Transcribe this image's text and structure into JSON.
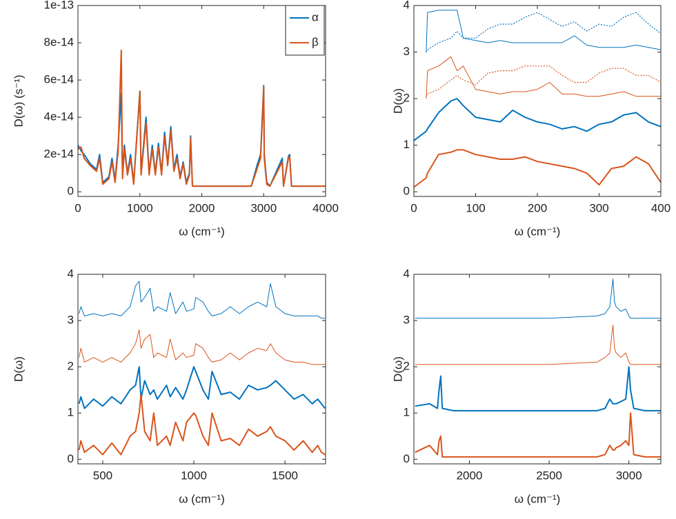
{
  "chart_data": [
    {
      "type": "line",
      "xlabel": "ω (cm⁻¹)",
      "ylabel": "D(ω) (s⁻¹)",
      "legend": "upper right",
      "xlim": [
        0,
        4000
      ],
      "xticks": [
        0,
        1000,
        2000,
        3000,
        4000
      ],
      "ylim": [
        -2.5e-15,
        1e-13
      ],
      "yticks": [
        0,
        {
          "value": 2e-14,
          "label": "2e-14"
        },
        {
          "value": 4e-14,
          "label": "4e-14"
        },
        {
          "value": 6e-14,
          "label": "6e-14"
        },
        {
          "value": 8e-14,
          "label": "8e-14"
        },
        {
          "value": 1e-13,
          "label": "1e-13"
        }
      ],
      "x": [
        0,
        50,
        100,
        200,
        300,
        350,
        400,
        500,
        550,
        600,
        650,
        700,
        720,
        750,
        800,
        850,
        900,
        1000,
        1020,
        1100,
        1150,
        1200,
        1250,
        1300,
        1350,
        1400,
        1450,
        1500,
        1550,
        1600,
        1650,
        1700,
        1750,
        1800,
        1820,
        1850,
        2000,
        2500,
        2800,
        2900,
        2950,
        3000,
        3010,
        3050,
        3100,
        3300,
        3320,
        3400,
        3420,
        3450,
        4000
      ],
      "series": [
        {
          "name": "α",
          "color": "#0072bd",
          "style": "thick",
          "values": [
            2.5e-14,
            2.2e-14,
            2e-14,
            1.5e-14,
            1.2e-14,
            2e-14,
            5e-15,
            8e-15,
            1.8e-14,
            6e-15,
            2.5e-14,
            5.3e-14,
            8e-15,
            2.5e-14,
            1e-14,
            2e-14,
            5e-15,
            5.4e-14,
            1e-14,
            4e-14,
            1e-14,
            2.5e-14,
            1e-14,
            2.6e-14,
            1e-14,
            3.2e-14,
            1.5e-14,
            3.5e-14,
            1.2e-14,
            2e-14,
            8e-15,
            1.6e-14,
            5e-15,
            1e-14,
            3e-14,
            3e-15,
            3e-15,
            3e-15,
            3e-15,
            1.5e-14,
            2e-14,
            5.7e-14,
            2e-14,
            5e-15,
            3e-15,
            1.8e-14,
            3e-15,
            1.9e-14,
            2e-14,
            3e-15,
            3e-15
          ]
        },
        {
          "name": "β",
          "color": "#d95319",
          "style": "thick",
          "values": [
            2.3e-14,
            2.4e-14,
            1.8e-14,
            1.4e-14,
            1.1e-14,
            1.8e-14,
            4e-15,
            7e-15,
            1.6e-14,
            5e-15,
            2.2e-14,
            7.6e-14,
            7e-15,
            2.3e-14,
            9e-15,
            1.8e-14,
            4e-15,
            5.4e-14,
            9e-15,
            3.7e-14,
            9e-15,
            2.3e-14,
            9e-15,
            2.4e-14,
            9e-15,
            3e-14,
            1.4e-14,
            3.3e-14,
            1.1e-14,
            1.8e-14,
            7e-15,
            1.5e-14,
            4e-15,
            9e-15,
            2.9e-14,
            3e-15,
            3e-15,
            3e-15,
            3e-15,
            1.3e-14,
            1.8e-14,
            5.6e-14,
            1.8e-14,
            4e-15,
            3e-15,
            1.6e-14,
            3e-15,
            1.8e-14,
            1.9e-14,
            3e-15,
            3e-15
          ]
        }
      ]
    },
    {
      "type": "line",
      "xlabel": "ω (cm⁻¹)",
      "ylabel": "D(ω)",
      "xlim": [
        0,
        400
      ],
      "xticks": [
        0,
        100,
        200,
        300,
        400
      ],
      "ylim": [
        -0.1,
        4
      ],
      "yticks": [
        0,
        1,
        2,
        3,
        4
      ],
      "x": [
        0,
        20,
        22,
        40,
        60,
        70,
        80,
        100,
        120,
        140,
        160,
        180,
        200,
        220,
        240,
        260,
        280,
        300,
        320,
        340,
        360,
        380,
        400
      ],
      "series": [
        {
          "color": "#0072bd",
          "style": "dotted",
          "values": [
            null,
            3.0,
            3.05,
            3.2,
            3.3,
            3.45,
            3.3,
            3.3,
            3.5,
            3.6,
            3.6,
            3.75,
            3.85,
            3.7,
            3.55,
            3.65,
            3.45,
            3.6,
            3.55,
            3.75,
            3.85,
            3.6,
            3.4
          ]
        },
        {
          "color": "#0072bd",
          "style": "thin",
          "values": [
            null,
            3.0,
            3.85,
            3.9,
            3.9,
            3.9,
            3.3,
            3.25,
            3.2,
            3.25,
            3.2,
            3.2,
            3.2,
            3.2,
            3.2,
            3.35,
            3.15,
            3.1,
            3.1,
            3.1,
            3.15,
            3.1,
            3.05
          ]
        },
        {
          "color": "#0072bd",
          "style": "thick",
          "values": [
            1.1,
            1.3,
            1.35,
            1.7,
            1.95,
            2.0,
            1.85,
            1.6,
            1.55,
            1.5,
            1.75,
            1.6,
            1.5,
            1.45,
            1.35,
            1.4,
            1.3,
            1.45,
            1.5,
            1.65,
            1.7,
            1.5,
            1.4
          ]
        },
        {
          "color": "#d95319",
          "style": "dotted",
          "values": [
            null,
            2.05,
            2.1,
            2.2,
            2.4,
            2.5,
            2.4,
            2.3,
            2.55,
            2.6,
            2.6,
            2.7,
            2.7,
            2.7,
            2.5,
            2.35,
            2.35,
            2.55,
            2.65,
            2.65,
            2.5,
            2.5,
            2.35
          ]
        },
        {
          "color": "#d95319",
          "style": "thin",
          "values": [
            null,
            2.0,
            2.6,
            2.7,
            2.9,
            2.6,
            2.7,
            2.2,
            2.15,
            2.1,
            2.15,
            2.15,
            2.2,
            2.35,
            2.1,
            2.1,
            2.05,
            2.05,
            2.1,
            2.15,
            2.05,
            2.05,
            2.05
          ]
        },
        {
          "color": "#d95319",
          "style": "thick",
          "values": [
            0.1,
            0.3,
            0.4,
            0.8,
            0.85,
            0.9,
            0.9,
            0.8,
            0.75,
            0.7,
            0.7,
            0.75,
            0.65,
            0.6,
            0.55,
            0.5,
            0.4,
            0.15,
            0.5,
            0.55,
            0.75,
            0.6,
            0.2
          ]
        }
      ]
    },
    {
      "type": "line",
      "xlabel": "ω (cm⁻¹)",
      "ylabel": "D(ω)",
      "xlim": [
        364,
        1723
      ],
      "xticks": [
        500,
        1000,
        1500
      ],
      "ylim": [
        -0.1,
        4
      ],
      "yticks": [
        0,
        1,
        2,
        3,
        4
      ],
      "x": [
        370,
        380,
        400,
        450,
        500,
        550,
        600,
        650,
        680,
        700,
        710,
        730,
        760,
        780,
        800,
        850,
        870,
        900,
        940,
        960,
        1000,
        1010,
        1050,
        1080,
        1100,
        1150,
        1200,
        1250,
        1300,
        1350,
        1400,
        1420,
        1450,
        1500,
        1550,
        1600,
        1650,
        1680,
        1700,
        1720
      ],
      "series": [
        {
          "color": "#0072bd",
          "style": "thin",
          "values": [
            3.15,
            3.3,
            3.1,
            3.15,
            3.1,
            3.15,
            3.1,
            3.3,
            3.75,
            3.85,
            3.4,
            3.5,
            3.7,
            3.2,
            3.3,
            3.2,
            3.6,
            3.15,
            3.4,
            3.2,
            3.25,
            3.5,
            3.4,
            3.2,
            3.1,
            3.15,
            3.3,
            3.15,
            3.3,
            3.4,
            3.3,
            3.8,
            3.3,
            3.15,
            3.1,
            3.1,
            3.1,
            3.1,
            3.05,
            3.05
          ]
        },
        {
          "color": "#d95319",
          "style": "thin",
          "values": [
            2.2,
            2.4,
            2.1,
            2.2,
            2.1,
            2.2,
            2.1,
            2.3,
            2.5,
            2.8,
            2.4,
            2.6,
            2.7,
            2.2,
            2.3,
            2.2,
            2.6,
            2.15,
            2.3,
            2.2,
            2.25,
            2.5,
            2.4,
            2.2,
            2.1,
            2.15,
            2.3,
            2.15,
            2.3,
            2.4,
            2.35,
            2.5,
            2.3,
            2.15,
            2.1,
            2.1,
            2.05,
            2.05,
            2.05,
            2.05
          ]
        },
        {
          "color": "#0072bd",
          "style": "thick",
          "values": [
            1.2,
            1.35,
            1.1,
            1.3,
            1.15,
            1.35,
            1.2,
            1.5,
            1.6,
            2.0,
            1.3,
            1.7,
            1.4,
            1.5,
            1.3,
            1.6,
            1.35,
            1.55,
            1.3,
            1.5,
            2.0,
            1.9,
            1.5,
            1.3,
            1.9,
            1.4,
            1.45,
            1.3,
            1.6,
            1.5,
            1.55,
            1.6,
            1.7,
            1.5,
            1.3,
            1.4,
            1.2,
            1.3,
            1.2,
            1.1
          ]
        },
        {
          "color": "#d95319",
          "style": "thick",
          "values": [
            0.2,
            0.4,
            0.15,
            0.3,
            0.1,
            0.35,
            0.1,
            0.5,
            0.6,
            1.0,
            1.4,
            0.6,
            0.4,
            1.0,
            0.3,
            0.5,
            0.3,
            0.8,
            0.4,
            0.8,
            1.0,
            0.95,
            0.5,
            0.3,
            1.0,
            0.4,
            0.45,
            0.3,
            0.65,
            0.5,
            0.6,
            0.7,
            0.5,
            0.4,
            0.2,
            0.4,
            0.15,
            0.3,
            0.15,
            0.1
          ]
        }
      ]
    },
    {
      "type": "line",
      "xlabel": "ω (cm⁻¹)",
      "ylabel": "D(ω)",
      "xlim": [
        1652,
        3200
      ],
      "xticks": [
        2000,
        2500,
        3000
      ],
      "ylim": [
        -0.1,
        4
      ],
      "yticks": [
        0,
        1,
        2,
        3,
        4
      ],
      "x": [
        1660,
        1750,
        1800,
        1810,
        1820,
        1830,
        1900,
        2500,
        2800,
        2850,
        2880,
        2900,
        2910,
        2920,
        2950,
        2980,
        3000,
        3010,
        3030,
        3100,
        3200
      ],
      "series": [
        {
          "color": "#0072bd",
          "style": "thin",
          "values": [
            3.05,
            3.05,
            3.05,
            3.05,
            3.05,
            3.05,
            3.05,
            3.05,
            3.1,
            3.15,
            3.3,
            3.9,
            3.4,
            3.3,
            3.2,
            3.25,
            3.1,
            3.05,
            3.05,
            3.05,
            3.05
          ]
        },
        {
          "color": "#d95319",
          "style": "thin",
          "values": [
            2.05,
            2.05,
            2.05,
            2.05,
            2.05,
            2.05,
            2.05,
            2.05,
            2.1,
            2.2,
            2.3,
            2.9,
            2.4,
            2.3,
            2.2,
            2.3,
            2.1,
            2.05,
            2.05,
            2.05,
            2.05
          ]
        },
        {
          "color": "#0072bd",
          "style": "thick",
          "values": [
            1.15,
            1.2,
            1.1,
            1.5,
            1.8,
            1.1,
            1.05,
            1.05,
            1.05,
            1.1,
            1.3,
            1.2,
            1.2,
            1.2,
            1.25,
            1.3,
            2.0,
            1.5,
            1.1,
            1.05,
            1.05
          ]
        },
        {
          "color": "#d95319",
          "style": "thick",
          "values": [
            0.15,
            0.3,
            0.1,
            0.4,
            0.5,
            0.05,
            0.05,
            0.05,
            0.05,
            0.1,
            0.3,
            0.2,
            0.2,
            0.25,
            0.3,
            0.4,
            0.3,
            1.0,
            0.1,
            0.05,
            0.05
          ]
        }
      ]
    }
  ]
}
